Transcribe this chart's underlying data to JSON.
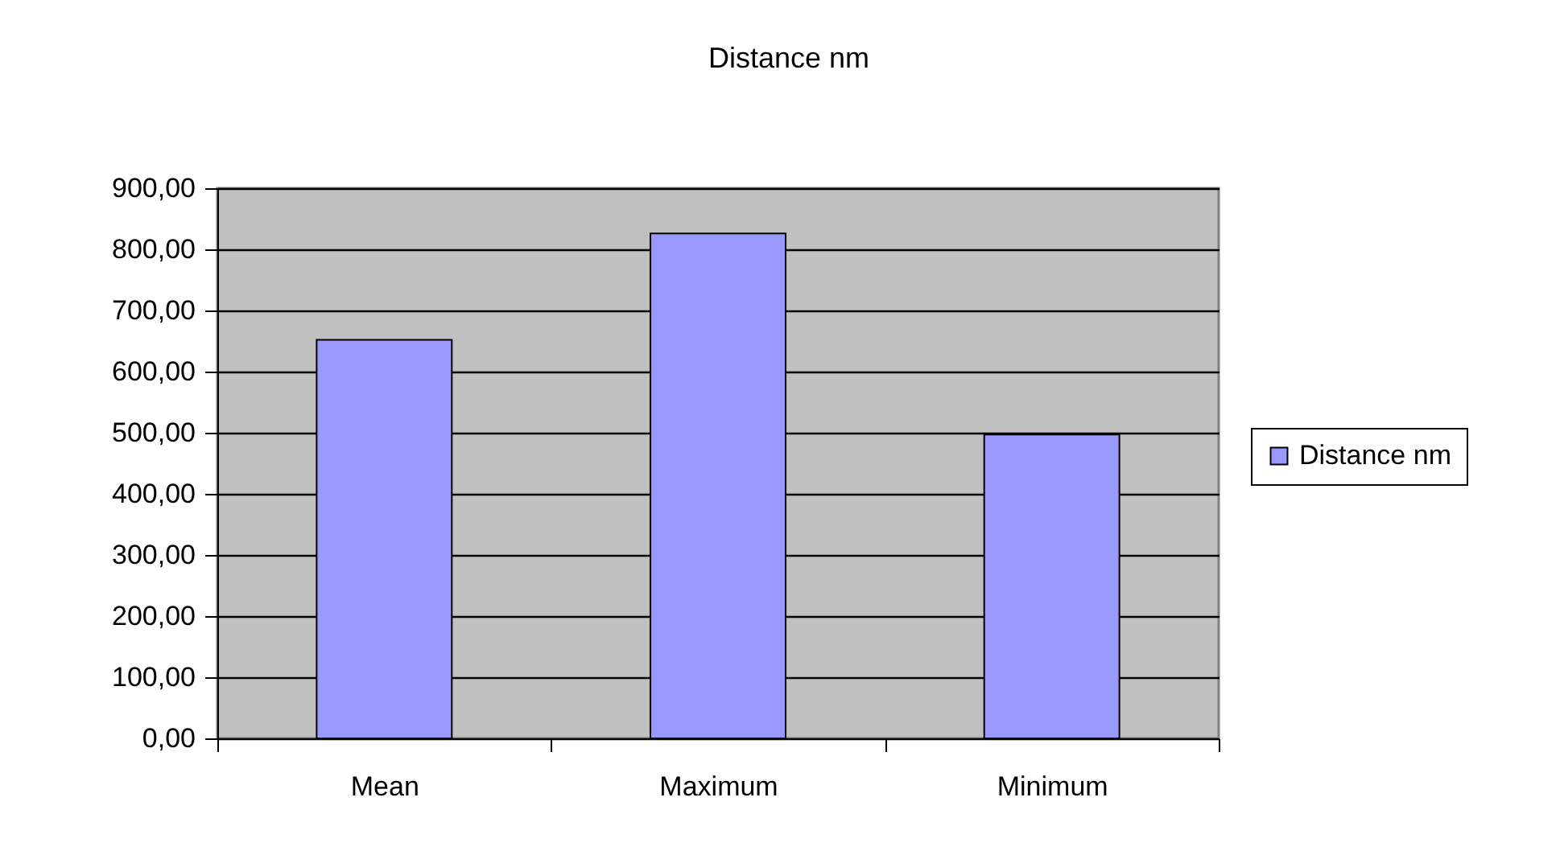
{
  "chart_data": {
    "type": "bar",
    "title": "Distance nm",
    "categories": [
      "Mean",
      "Maximum",
      "Minimum"
    ],
    "series": [
      {
        "name": "Distance nm",
        "color": "#9999ff",
        "values": [
          652,
          826,
          497
        ]
      }
    ],
    "ylim": [
      0,
      900
    ],
    "yticks": [
      {
        "value": 0,
        "label": "0,00"
      },
      {
        "value": 100,
        "label": "100,00"
      },
      {
        "value": 200,
        "label": "200,00"
      },
      {
        "value": 300,
        "label": "300,00"
      },
      {
        "value": 400,
        "label": "400,00"
      },
      {
        "value": 500,
        "label": "500,00"
      },
      {
        "value": 600,
        "label": "600,00"
      },
      {
        "value": 700,
        "label": "700,00"
      },
      {
        "value": 800,
        "label": "800,00"
      },
      {
        "value": 900,
        "label": "900,00"
      }
    ],
    "grid": "y",
    "legend": "right"
  }
}
